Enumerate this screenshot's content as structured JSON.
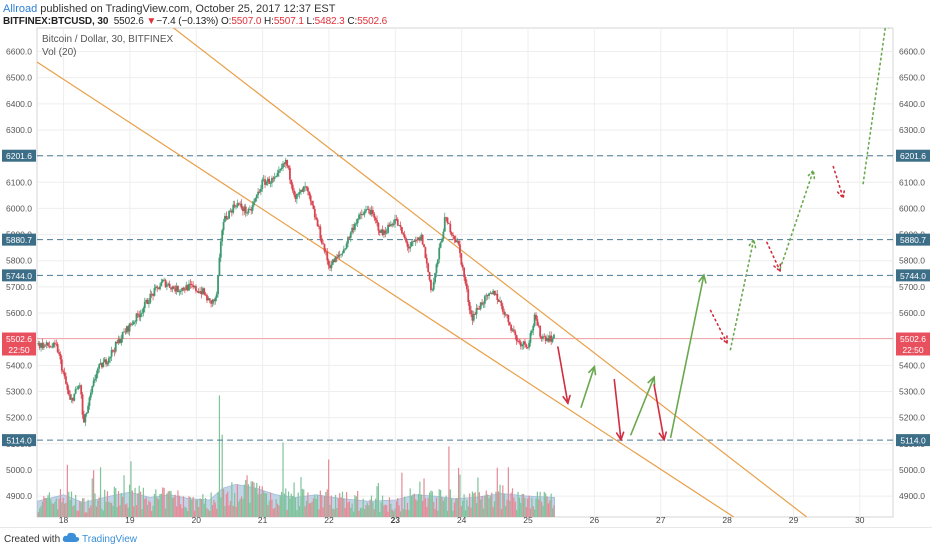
{
  "header": {
    "author": "Allroad",
    "published": " published on TradingView.com, October 25, 2017 12:37 EST",
    "symbol": "BITFINEX:BTCUSD, 30",
    "last": "5502.6",
    "arrow": "▼",
    "change": "−7.4 (−0.13%)",
    "o_label": "O:",
    "o_value": "5507.0",
    "h_label": "H:",
    "h_value": "5507.1",
    "l_label": "L:",
    "l_value": "5482.3",
    "c_label": "C:",
    "c_value": "5502.6"
  },
  "footer": {
    "created": "Created with",
    "brand": "TradingView"
  },
  "chart_data": {
    "type": "candlestick",
    "title": "Bitcoin / Dollar, 30, BITFINEX",
    "indicator": "Vol (20)",
    "ylim": [
      4820,
      6690
    ],
    "xlim": [
      17.6,
      30.5
    ],
    "y_ticks": [
      4900,
      5000,
      5100,
      5200,
      5300,
      5400,
      5500,
      5600,
      5700,
      5800,
      5900,
      6000,
      6100,
      6200,
      6300,
      6400,
      6500,
      6600
    ],
    "x_ticks": [
      {
        "value": 18,
        "label": "18"
      },
      {
        "value": 19,
        "label": "19"
      },
      {
        "value": 20,
        "label": "20"
      },
      {
        "value": 21,
        "label": "21"
      },
      {
        "value": 22,
        "label": "22"
      },
      {
        "value": 23,
        "label": "23",
        "bold": true
      },
      {
        "value": 24,
        "label": "24"
      },
      {
        "value": 25,
        "label": "25"
      },
      {
        "value": 26,
        "label": "26"
      },
      {
        "value": 27,
        "label": "27"
      },
      {
        "value": 28,
        "label": "28"
      },
      {
        "value": 29,
        "label": "29"
      },
      {
        "value": 30,
        "label": "30"
      }
    ],
    "price_keypoints": [
      [
        17.6,
        5480
      ],
      [
        17.9,
        5470
      ],
      [
        18.1,
        5260
      ],
      [
        18.25,
        5330
      ],
      [
        18.3,
        5170
      ],
      [
        18.5,
        5380
      ],
      [
        18.65,
        5420
      ],
      [
        18.9,
        5520
      ],
      [
        19.15,
        5600
      ],
      [
        19.3,
        5660
      ],
      [
        19.5,
        5720
      ],
      [
        19.7,
        5690
      ],
      [
        19.9,
        5700
      ],
      [
        20.1,
        5680
      ],
      [
        20.2,
        5640
      ],
      [
        20.3,
        5650
      ],
      [
        20.4,
        5950
      ],
      [
        20.6,
        6020
      ],
      [
        20.8,
        5980
      ],
      [
        21.0,
        6100
      ],
      [
        21.2,
        6110
      ],
      [
        21.35,
        6180
      ],
      [
        21.5,
        6040
      ],
      [
        21.65,
        6080
      ],
      [
        21.8,
        5960
      ],
      [
        22.0,
        5780
      ],
      [
        22.2,
        5830
      ],
      [
        22.4,
        5950
      ],
      [
        22.6,
        6000
      ],
      [
        22.8,
        5900
      ],
      [
        23.0,
        5960
      ],
      [
        23.2,
        5850
      ],
      [
        23.4,
        5890
      ],
      [
        23.55,
        5680
      ],
      [
        23.75,
        5960
      ],
      [
        23.95,
        5860
      ],
      [
        24.15,
        5580
      ],
      [
        24.3,
        5640
      ],
      [
        24.5,
        5680
      ],
      [
        24.65,
        5600
      ],
      [
        24.85,
        5490
      ],
      [
        25.0,
        5480
      ],
      [
        25.1,
        5580
      ],
      [
        25.2,
        5510
      ],
      [
        25.4,
        5502
      ]
    ],
    "price_seed": 7,
    "volume_keypoints": [
      [
        17.6,
        4880
      ],
      [
        18.0,
        4905
      ],
      [
        18.3,
        4875
      ],
      [
        18.7,
        4900
      ],
      [
        19.0,
        4915
      ],
      [
        19.3,
        4895
      ],
      [
        19.6,
        4905
      ],
      [
        19.9,
        4890
      ],
      [
        20.2,
        4885
      ],
      [
        20.4,
        4930
      ],
      [
        20.6,
        4945
      ],
      [
        20.9,
        4930
      ],
      [
        21.2,
        4905
      ],
      [
        21.5,
        4895
      ],
      [
        21.8,
        4905
      ],
      [
        22.2,
        4890
      ],
      [
        22.6,
        4880
      ],
      [
        23.0,
        4885
      ],
      [
        23.3,
        4905
      ],
      [
        23.6,
        4900
      ],
      [
        23.9,
        4890
      ],
      [
        24.2,
        4895
      ],
      [
        24.6,
        4910
      ],
      [
        25.0,
        4900
      ],
      [
        25.4,
        4895
      ]
    ],
    "volume_spikes": [
      [
        20.35,
        5285
      ],
      [
        20.4,
        5135
      ],
      [
        21.3,
        5105
      ],
      [
        23.8,
        5090
      ],
      [
        18.05,
        5020
      ],
      [
        18.55,
        5010
      ],
      [
        22.0,
        5040
      ],
      [
        24.7,
        5010
      ]
    ],
    "horizontal_levels": [
      {
        "value": 6201.6,
        "label": "6201.6"
      },
      {
        "value": 5880.7,
        "label": "5880.7"
      },
      {
        "value": 5744.0,
        "label": "5744.0"
      },
      {
        "value": 5114.0,
        "label": "5114.0"
      }
    ],
    "last_price": {
      "value": 5502.6,
      "label": "5502.6",
      "countdown": "22:50"
    },
    "trendlines": [
      {
        "from": [
          19.2,
          6780
        ],
        "to": [
          29.2,
          4820
        ]
      },
      {
        "from": [
          17.6,
          6560
        ],
        "to": [
          28.1,
          4820
        ]
      }
    ],
    "arrows_solid": [
      {
        "from": [
          25.45,
          5470
        ],
        "to": [
          25.6,
          5255
        ],
        "color": "#d12d3f"
      },
      {
        "from": [
          25.8,
          5240
        ],
        "to": [
          26.0,
          5395
        ],
        "color": "#6aa84f"
      },
      {
        "from": [
          26.3,
          5345
        ],
        "to": [
          26.4,
          5115
        ],
        "color": "#d12d3f"
      },
      {
        "from": [
          26.55,
          5135
        ],
        "to": [
          26.9,
          5355
        ],
        "color": "#6aa84f"
      },
      {
        "from": [
          26.9,
          5325
        ],
        "to": [
          27.05,
          5115
        ],
        "color": "#d12d3f"
      },
      {
        "from": [
          27.15,
          5125
        ],
        "to": [
          27.65,
          5745
        ],
        "color": "#6aa84f"
      }
    ],
    "arrows_dotted": [
      {
        "from": [
          27.75,
          5610
        ],
        "to": [
          28.0,
          5485
        ],
        "color": "#d12d3f"
      },
      {
        "from": [
          28.05,
          5460
        ],
        "to": [
          28.4,
          5880
        ],
        "color": "#6aa84f"
      },
      {
        "from": [
          28.6,
          5870
        ],
        "to": [
          28.8,
          5760
        ],
        "color": "#d12d3f"
      },
      {
        "from": [
          28.8,
          5770
        ],
        "to": [
          29.3,
          6145
        ],
        "color": "#6aa84f"
      },
      {
        "from": [
          29.6,
          6160
        ],
        "to": [
          29.75,
          6040
        ],
        "color": "#d12d3f"
      },
      {
        "from": [
          30.05,
          6095
        ],
        "to": [
          30.4,
          6720
        ],
        "color": "#6aa84f"
      }
    ]
  }
}
